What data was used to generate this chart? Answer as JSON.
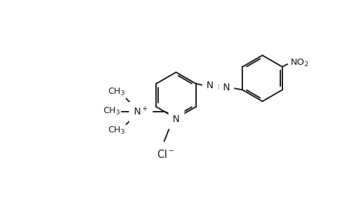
{
  "bg_color": "#ffffff",
  "line_color": "#1a1a1a",
  "line_width": 1.4,
  "font_size": 9.5,
  "figsize": [
    5.04,
    2.93
  ],
  "dpi": 100,
  "xlim": [
    0,
    10.08
  ],
  "ylim": [
    0,
    5.86
  ]
}
